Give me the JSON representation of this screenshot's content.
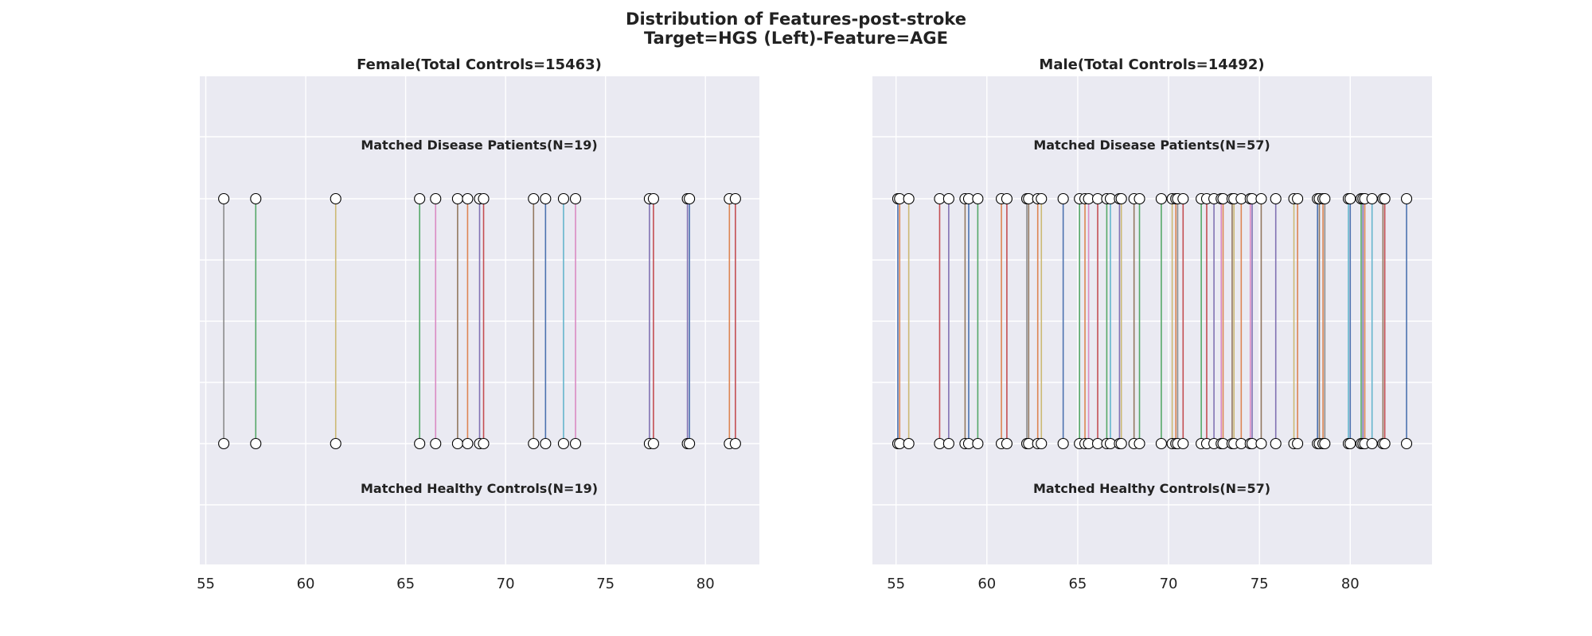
{
  "chart_data": {
    "title_line1": "Distribution of Features-post-stroke",
    "title_line2": "Target=HGS (Left)-Feature=AGE",
    "palette": [
      "#4c72b0",
      "#dd8452",
      "#55a868",
      "#c44e52",
      "#8172b3",
      "#937860",
      "#da8bc3",
      "#8c8c8c",
      "#ccb974",
      "#64b5cd"
    ],
    "panels": [
      {
        "type": "line",
        "title": "Female(Total Controls=15463)",
        "top_label": "Matched Disease Patients(N=19)",
        "bottom_label": "Matched Healthy Controls(N=19)",
        "xlim": [
          54.7,
          82.7
        ],
        "xticks": [
          55,
          60,
          65,
          70,
          75,
          80
        ],
        "grid": true,
        "pairs": [
          {
            "patient": 55.9,
            "control": 55.9,
            "color": "#8c8c8c"
          },
          {
            "patient": 57.5,
            "control": 57.5,
            "color": "#55a868"
          },
          {
            "patient": 61.5,
            "control": 61.5,
            "color": "#ccb974"
          },
          {
            "patient": 65.7,
            "control": 65.7,
            "color": "#55a868"
          },
          {
            "patient": 66.5,
            "control": 66.5,
            "color": "#da8bc3"
          },
          {
            "patient": 67.6,
            "control": 67.6,
            "color": "#937860"
          },
          {
            "patient": 68.1,
            "control": 68.1,
            "color": "#dd8452"
          },
          {
            "patient": 68.7,
            "control": 68.7,
            "color": "#8172b3"
          },
          {
            "patient": 68.9,
            "control": 68.9,
            "color": "#c44e52"
          },
          {
            "patient": 71.4,
            "control": 71.4,
            "color": "#937860"
          },
          {
            "patient": 72.0,
            "control": 72.0,
            "color": "#4c72b0"
          },
          {
            "patient": 72.9,
            "control": 72.9,
            "color": "#64b5cd"
          },
          {
            "patient": 73.5,
            "control": 73.5,
            "color": "#da8bc3"
          },
          {
            "patient": 77.2,
            "control": 77.2,
            "color": "#8172b3"
          },
          {
            "patient": 77.4,
            "control": 77.4,
            "color": "#c44e52"
          },
          {
            "patient": 79.1,
            "control": 79.1,
            "color": "#8172b3"
          },
          {
            "patient": 79.2,
            "control": 79.2,
            "color": "#4c72b0"
          },
          {
            "patient": 81.2,
            "control": 81.2,
            "color": "#dd8452"
          },
          {
            "patient": 81.5,
            "control": 81.5,
            "color": "#c44e52"
          }
        ]
      },
      {
        "type": "line",
        "title": "Male(Total Controls=14492)",
        "top_label": "Matched Disease Patients(N=57)",
        "bottom_label": "Matched Healthy Controls(N=57)",
        "xlim": [
          53.7,
          84.5
        ],
        "xticks": [
          55,
          60,
          65,
          70,
          75,
          80
        ],
        "grid": true,
        "pairs": [
          {
            "patient": 55.1,
            "control": 55.1,
            "color": "#4c72b0"
          },
          {
            "patient": 55.2,
            "control": 55.2,
            "color": "#dd8452"
          },
          {
            "patient": 55.7,
            "control": 55.7,
            "color": "#ccb974"
          },
          {
            "patient": 57.4,
            "control": 57.4,
            "color": "#c44e52"
          },
          {
            "patient": 57.9,
            "control": 57.9,
            "color": "#8172b3"
          },
          {
            "patient": 58.8,
            "control": 58.8,
            "color": "#937860"
          },
          {
            "patient": 59.0,
            "control": 59.0,
            "color": "#4c72b0"
          },
          {
            "patient": 59.5,
            "control": 59.5,
            "color": "#55a868"
          },
          {
            "patient": 60.8,
            "control": 60.8,
            "color": "#dd8452"
          },
          {
            "patient": 61.1,
            "control": 61.1,
            "color": "#c44e52"
          },
          {
            "patient": 62.2,
            "control": 62.2,
            "color": "#8c8c8c"
          },
          {
            "patient": 62.3,
            "control": 62.3,
            "color": "#937860"
          },
          {
            "patient": 62.8,
            "control": 62.8,
            "color": "#dd8452"
          },
          {
            "patient": 63.0,
            "control": 63.0,
            "color": "#ccb974"
          },
          {
            "patient": 64.2,
            "control": 64.2,
            "color": "#4c72b0"
          },
          {
            "patient": 65.1,
            "control": 65.1,
            "color": "#55a868"
          },
          {
            "patient": 65.4,
            "control": 65.4,
            "color": "#dd8452"
          },
          {
            "patient": 65.6,
            "control": 65.6,
            "color": "#da8bc3"
          },
          {
            "patient": 66.1,
            "control": 66.1,
            "color": "#c44e52"
          },
          {
            "patient": 66.6,
            "control": 66.6,
            "color": "#55a868"
          },
          {
            "patient": 66.8,
            "control": 66.8,
            "color": "#64b5cd"
          },
          {
            "patient": 67.3,
            "control": 67.3,
            "color": "#8172b3"
          },
          {
            "patient": 67.4,
            "control": 67.4,
            "color": "#ccb974"
          },
          {
            "patient": 68.1,
            "control": 68.1,
            "color": "#937860"
          },
          {
            "patient": 68.4,
            "control": 68.4,
            "color": "#55a868"
          },
          {
            "patient": 69.6,
            "control": 69.6,
            "color": "#55a868"
          },
          {
            "patient": 70.2,
            "control": 70.2,
            "color": "#ccb974"
          },
          {
            "patient": 70.4,
            "control": 70.4,
            "color": "#dd8452"
          },
          {
            "patient": 70.5,
            "control": 70.5,
            "color": "#8c8c8c"
          },
          {
            "patient": 70.8,
            "control": 70.8,
            "color": "#c44e52"
          },
          {
            "patient": 71.8,
            "control": 71.8,
            "color": "#55a868"
          },
          {
            "patient": 72.1,
            "control": 72.1,
            "color": "#c44e52"
          },
          {
            "patient": 72.5,
            "control": 72.5,
            "color": "#8172b3"
          },
          {
            "patient": 72.9,
            "control": 72.9,
            "color": "#da8bc3"
          },
          {
            "patient": 73.0,
            "control": 73.0,
            "color": "#dd8452"
          },
          {
            "patient": 73.5,
            "control": 73.5,
            "color": "#937860"
          },
          {
            "patient": 73.6,
            "control": 73.6,
            "color": "#ccb974"
          },
          {
            "patient": 74.0,
            "control": 74.0,
            "color": "#dd8452"
          },
          {
            "patient": 74.5,
            "control": 74.5,
            "color": "#da8bc3"
          },
          {
            "patient": 74.6,
            "control": 74.6,
            "color": "#8172b3"
          },
          {
            "patient": 75.1,
            "control": 75.1,
            "color": "#937860"
          },
          {
            "patient": 75.9,
            "control": 75.9,
            "color": "#8172b3"
          },
          {
            "patient": 76.9,
            "control": 76.9,
            "color": "#ccb974"
          },
          {
            "patient": 77.1,
            "control": 77.1,
            "color": "#dd8452"
          },
          {
            "patient": 78.2,
            "control": 78.2,
            "color": "#4c72b0"
          },
          {
            "patient": 78.3,
            "control": 78.3,
            "color": "#937860"
          },
          {
            "patient": 78.5,
            "control": 78.5,
            "color": "#dd8452"
          },
          {
            "patient": 78.6,
            "control": 78.6,
            "color": "#8c8c8c"
          },
          {
            "patient": 79.9,
            "control": 79.9,
            "color": "#64b5cd"
          },
          {
            "patient": 80.0,
            "control": 80.0,
            "color": "#4c72b0"
          },
          {
            "patient": 80.6,
            "control": 80.6,
            "color": "#55a868"
          },
          {
            "patient": 80.7,
            "control": 80.7,
            "color": "#8172b3"
          },
          {
            "patient": 80.8,
            "control": 80.8,
            "color": "#dd8452"
          },
          {
            "patient": 81.2,
            "control": 81.2,
            "color": "#64b5cd"
          },
          {
            "patient": 81.8,
            "control": 81.8,
            "color": "#937860"
          },
          {
            "patient": 81.9,
            "control": 81.9,
            "color": "#c44e52"
          },
          {
            "patient": 83.1,
            "control": 83.1,
            "color": "#4c72b0"
          }
        ]
      }
    ]
  }
}
